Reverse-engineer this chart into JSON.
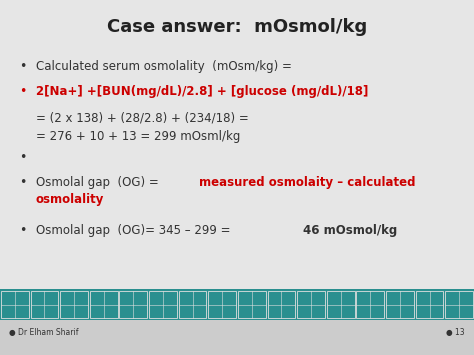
{
  "title": "Case answer:  mOsmol/kg",
  "bg_color": "#e6e6e6",
  "title_color": "#222222",
  "black_color": "#333333",
  "red_color": "#cc0000",
  "footer_teal": "#2a8f8f",
  "footer_gray": "#cccccc",
  "footer_text_left": "● Dr Elham Sharif",
  "footer_text_right": "● 13",
  "line1_black": "Calculated serum osmolality  (mOsm/kg) =",
  "line2_red": "2[Na+] +[BUN(mg/dL)/2.8] + [glucose (mg/dL)/18]",
  "line3": "= (2 x 138) + (28/2.8) + (234/18) =",
  "line4": "= 276 + 10 + 13 = 299 mOsml/kg",
  "line5_black": "Osmolal gap  (OG) = ",
  "line5_red_1": "measured osmolaity – calculated",
  "line5_red_2": "osmolality",
  "line6": "Osmolal gap  (OG)= 345 – 299 = ",
  "line6_bold": "46 mOsmol/kg"
}
